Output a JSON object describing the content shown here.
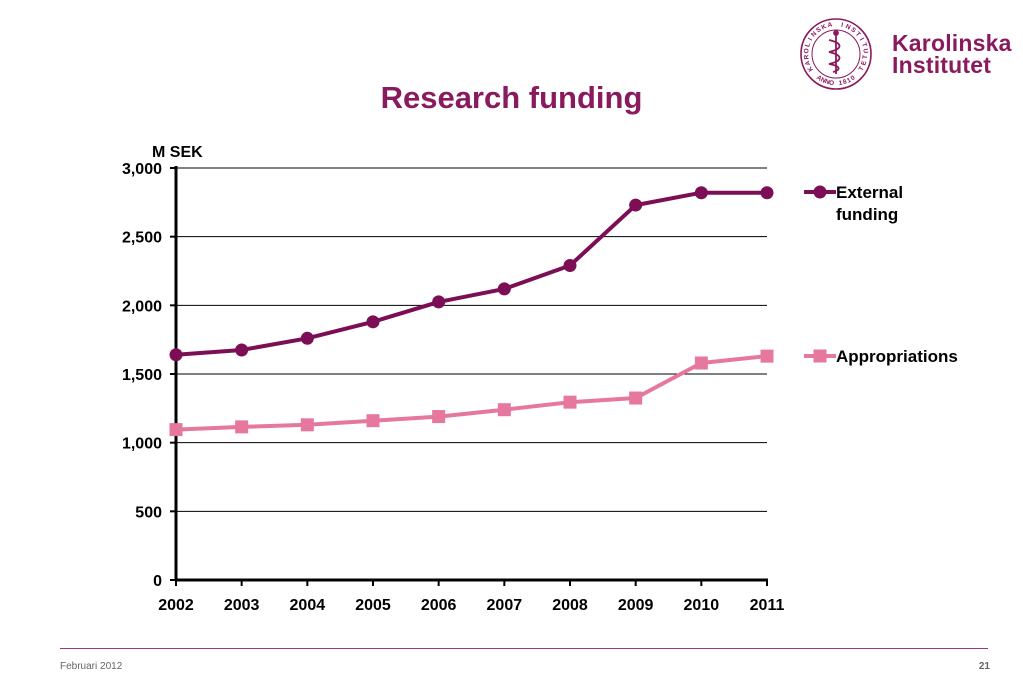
{
  "slide": {
    "title": "Research funding",
    "footer_date": "Februari 2012",
    "page_number": "21"
  },
  "logo": {
    "name_line1": "Karolinska",
    "name_line2": "Institutet",
    "seal_text": "KAROLINSKA INSTITUTET",
    "seal_year": "ANNO 1810",
    "seal_icon": "aesculapius-staff-icon",
    "color": "#8a1a5e"
  },
  "chart_data": {
    "type": "line",
    "title": "",
    "ylabel": "M SEK",
    "xlabel": "",
    "x": [
      "2002",
      "2003",
      "2004",
      "2005",
      "2006",
      "2007",
      "2008",
      "2009",
      "2010",
      "2011"
    ],
    "ylim": [
      0,
      3000
    ],
    "yticks": [
      0,
      500,
      1000,
      1500,
      2000,
      2500,
      3000
    ],
    "ytick_labels": [
      "0",
      "500",
      "1,000",
      "1,500",
      "2,000",
      "2,500",
      "3,000"
    ],
    "grid": true,
    "legend_position": "right",
    "series": [
      {
        "name": "External funding",
        "legend_lines": [
          "External",
          "funding"
        ],
        "color": "#7b0e55",
        "marker": "circle",
        "values": [
          1640,
          1675,
          1760,
          1880,
          2025,
          2120,
          2290,
          2730,
          2820,
          2820
        ]
      },
      {
        "name": "Appropriations",
        "legend_lines": [
          "Appropriations"
        ],
        "color": "#e6779e",
        "marker": "square",
        "values": [
          1095,
          1115,
          1130,
          1160,
          1190,
          1240,
          1295,
          1325,
          1580,
          1630
        ]
      }
    ]
  }
}
